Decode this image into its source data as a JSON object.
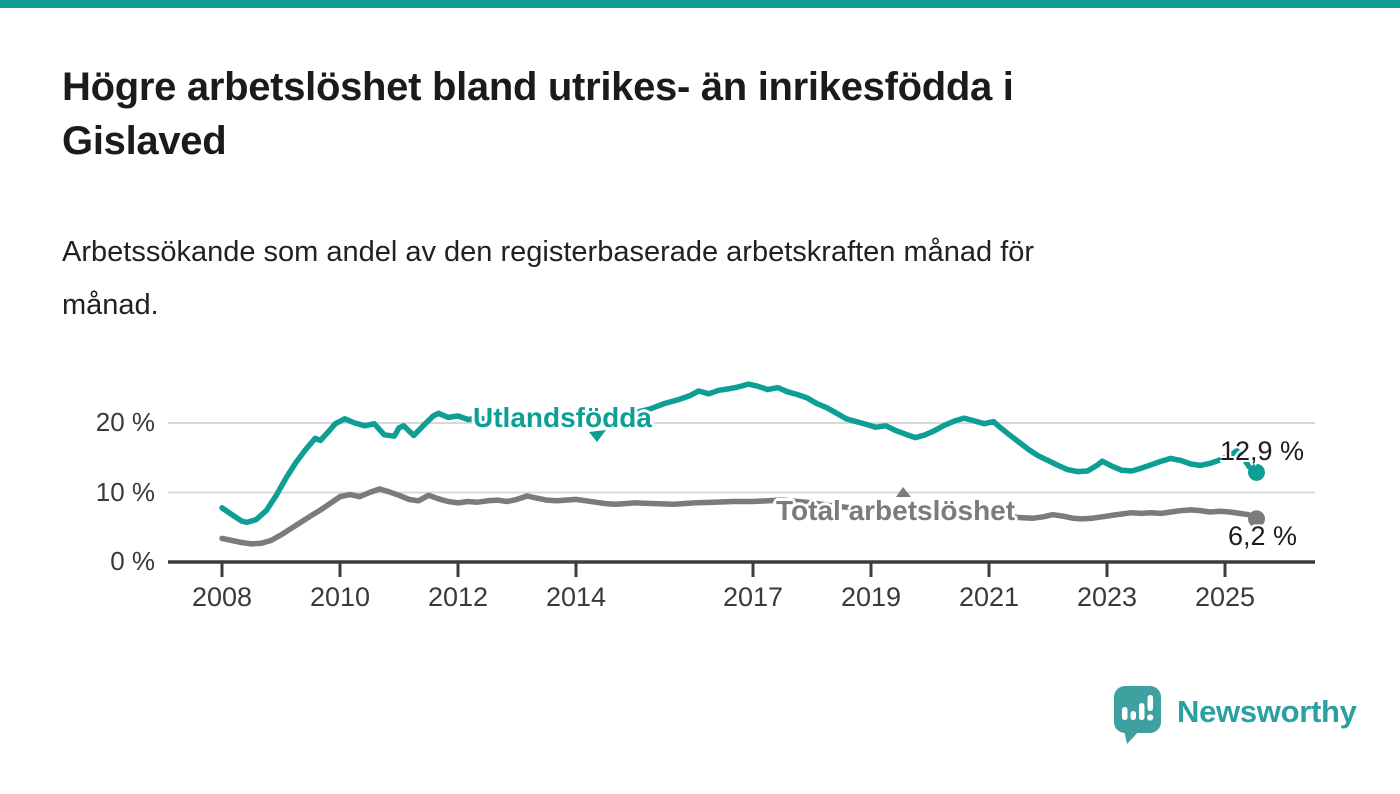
{
  "page": {
    "title_lines": [
      "Högre arbetslöshet bland utrikes- än inrikesfödda i",
      "Gislaved"
    ],
    "subtitle_lines": [
      "Arbetssökande som andel av den registerbaserade arbetskraften månad för",
      "månad."
    ]
  },
  "branding": {
    "logo_text": "Newsworthy",
    "icon": "speech-bubble-bar-chart-icon",
    "icon_color": "#3fa0a0",
    "text_color": "#2ba0a2"
  },
  "colors": {
    "accent_bar": "#0d9e94",
    "grid": "#d8d8d8",
    "axis": "#3d3d3d",
    "axis_text": "#3a3a3a",
    "value_label_text": "#1d1d1d"
  },
  "chart_data": {
    "type": "line",
    "x_unit": "decimal_year",
    "xlim": [
      2007.1,
      2026.4
    ],
    "ylim": [
      0,
      29
    ],
    "grid": true,
    "legend_position": "inline-labels",
    "y_ticks": [
      {
        "value": 0,
        "label": "0 %"
      },
      {
        "value": 10,
        "label": "10 %"
      },
      {
        "value": 20,
        "label": "20 %"
      }
    ],
    "x_ticks": [
      {
        "value": 2008,
        "label": "2008"
      },
      {
        "value": 2010,
        "label": "2010"
      },
      {
        "value": 2012,
        "label": "2012"
      },
      {
        "value": 2014,
        "label": "2014"
      },
      {
        "value": 2017,
        "label": "2017"
      },
      {
        "value": 2019,
        "label": "2019"
      },
      {
        "value": 2021,
        "label": "2021"
      },
      {
        "value": 2023,
        "label": "2023"
      },
      {
        "value": 2025,
        "label": "2025"
      }
    ],
    "series": [
      {
        "name": "Utlandsfödda",
        "color": "#0d9e94",
        "end_label": "12,9 %",
        "end_value": 12.9,
        "points": [
          [
            2008.0,
            7.8
          ],
          [
            2008.17,
            6.8
          ],
          [
            2008.33,
            5.9
          ],
          [
            2008.42,
            5.7
          ],
          [
            2008.58,
            6.1
          ],
          [
            2008.75,
            7.4
          ],
          [
            2008.92,
            9.6
          ],
          [
            2009.08,
            12.0
          ],
          [
            2009.25,
            14.3
          ],
          [
            2009.42,
            16.2
          ],
          [
            2009.58,
            17.8
          ],
          [
            2009.67,
            17.5
          ],
          [
            2009.83,
            19.0
          ],
          [
            2009.92,
            19.9
          ],
          [
            2010.08,
            20.6
          ],
          [
            2010.25,
            20.0
          ],
          [
            2010.42,
            19.6
          ],
          [
            2010.58,
            19.9
          ],
          [
            2010.75,
            18.3
          ],
          [
            2010.92,
            18.1
          ],
          [
            2011.0,
            19.3
          ],
          [
            2011.08,
            19.6
          ],
          [
            2011.25,
            18.2
          ],
          [
            2011.42,
            19.7
          ],
          [
            2011.58,
            21.0
          ],
          [
            2011.67,
            21.4
          ],
          [
            2011.83,
            20.8
          ],
          [
            2012.0,
            21.0
          ],
          [
            2012.17,
            20.5
          ],
          [
            2012.33,
            20.7
          ],
          [
            2012.5,
            20.5
          ],
          [
            2012.67,
            20.7
          ],
          [
            2012.83,
            20.4
          ],
          [
            2013.0,
            20.5
          ],
          [
            2013.25,
            20.8
          ],
          [
            2013.5,
            20.5
          ],
          [
            2013.75,
            20.7
          ],
          [
            2014.0,
            20.6
          ],
          [
            2014.25,
            21.0
          ],
          [
            2014.5,
            20.8
          ],
          [
            2014.75,
            21.2
          ],
          [
            2015.0,
            21.5
          ],
          [
            2015.25,
            22.0
          ],
          [
            2015.5,
            22.8
          ],
          [
            2015.75,
            23.4
          ],
          [
            2015.92,
            23.9
          ],
          [
            2016.08,
            24.6
          ],
          [
            2016.25,
            24.2
          ],
          [
            2016.42,
            24.7
          ],
          [
            2016.58,
            24.9
          ],
          [
            2016.75,
            25.2
          ],
          [
            2016.92,
            25.6
          ],
          [
            2017.08,
            25.3
          ],
          [
            2017.25,
            24.8
          ],
          [
            2017.42,
            25.1
          ],
          [
            2017.58,
            24.5
          ],
          [
            2017.75,
            24.1
          ],
          [
            2017.92,
            23.6
          ],
          [
            2018.08,
            22.8
          ],
          [
            2018.25,
            22.2
          ],
          [
            2018.42,
            21.4
          ],
          [
            2018.58,
            20.6
          ],
          [
            2018.75,
            20.2
          ],
          [
            2018.92,
            19.8
          ],
          [
            2019.08,
            19.4
          ],
          [
            2019.25,
            19.6
          ],
          [
            2019.42,
            18.9
          ],
          [
            2019.58,
            18.4
          ],
          [
            2019.75,
            17.9
          ],
          [
            2019.92,
            18.3
          ],
          [
            2020.08,
            18.9
          ],
          [
            2020.25,
            19.7
          ],
          [
            2020.42,
            20.3
          ],
          [
            2020.58,
            20.7
          ],
          [
            2020.75,
            20.3
          ],
          [
            2020.92,
            19.9
          ],
          [
            2021.08,
            20.2
          ],
          [
            2021.17,
            19.5
          ],
          [
            2021.33,
            18.4
          ],
          [
            2021.5,
            17.3
          ],
          [
            2021.67,
            16.2
          ],
          [
            2021.83,
            15.3
          ],
          [
            2022.0,
            14.6
          ],
          [
            2022.17,
            13.9
          ],
          [
            2022.33,
            13.3
          ],
          [
            2022.5,
            13.0
          ],
          [
            2022.67,
            13.1
          ],
          [
            2022.83,
            13.9
          ],
          [
            2022.92,
            14.5
          ],
          [
            2023.08,
            13.8
          ],
          [
            2023.25,
            13.2
          ],
          [
            2023.42,
            13.1
          ],
          [
            2023.58,
            13.5
          ],
          [
            2023.75,
            14.0
          ],
          [
            2023.92,
            14.5
          ],
          [
            2024.08,
            14.9
          ],
          [
            2024.25,
            14.6
          ],
          [
            2024.42,
            14.1
          ],
          [
            2024.58,
            13.9
          ],
          [
            2024.75,
            14.2
          ],
          [
            2024.92,
            14.7
          ],
          [
            2025.08,
            15.3
          ],
          [
            2025.2,
            16.0
          ],
          [
            2025.3,
            15.2
          ],
          [
            2025.4,
            13.8
          ],
          [
            2025.5,
            12.9
          ]
        ]
      },
      {
        "name": "Total arbetslöshet",
        "color": "#7b7b7b",
        "end_label": "6,2 %",
        "end_value": 6.2,
        "points": [
          [
            2008.0,
            3.4
          ],
          [
            2008.17,
            3.1
          ],
          [
            2008.33,
            2.8
          ],
          [
            2008.5,
            2.6
          ],
          [
            2008.67,
            2.7
          ],
          [
            2008.83,
            3.1
          ],
          [
            2009.0,
            3.9
          ],
          [
            2009.17,
            4.8
          ],
          [
            2009.33,
            5.7
          ],
          [
            2009.5,
            6.6
          ],
          [
            2009.67,
            7.5
          ],
          [
            2009.83,
            8.4
          ],
          [
            2010.0,
            9.4
          ],
          [
            2010.17,
            9.7
          ],
          [
            2010.33,
            9.4
          ],
          [
            2010.5,
            10.0
          ],
          [
            2010.67,
            10.5
          ],
          [
            2010.83,
            10.1
          ],
          [
            2011.0,
            9.6
          ],
          [
            2011.17,
            9.0
          ],
          [
            2011.33,
            8.8
          ],
          [
            2011.5,
            9.6
          ],
          [
            2011.67,
            9.1
          ],
          [
            2011.83,
            8.7
          ],
          [
            2012.0,
            8.5
          ],
          [
            2012.17,
            8.7
          ],
          [
            2012.33,
            8.6
          ],
          [
            2012.5,
            8.8
          ],
          [
            2012.67,
            8.9
          ],
          [
            2012.83,
            8.7
          ],
          [
            2013.0,
            9.0
          ],
          [
            2013.17,
            9.5
          ],
          [
            2013.33,
            9.2
          ],
          [
            2013.5,
            8.9
          ],
          [
            2013.67,
            8.8
          ],
          [
            2013.83,
            8.9
          ],
          [
            2014.0,
            9.0
          ],
          [
            2014.17,
            8.8
          ],
          [
            2014.33,
            8.6
          ],
          [
            2014.5,
            8.4
          ],
          [
            2014.67,
            8.3
          ],
          [
            2014.83,
            8.4
          ],
          [
            2015.0,
            8.5
          ],
          [
            2015.33,
            8.4
          ],
          [
            2015.67,
            8.3
          ],
          [
            2016.0,
            8.5
          ],
          [
            2016.33,
            8.6
          ],
          [
            2016.67,
            8.7
          ],
          [
            2017.0,
            8.7
          ],
          [
            2017.25,
            8.8
          ],
          [
            2017.5,
            8.9
          ],
          [
            2017.75,
            8.7
          ],
          [
            2018.0,
            8.5
          ],
          [
            2018.33,
            8.1
          ],
          [
            2018.67,
            7.8
          ],
          [
            2019.0,
            7.6
          ],
          [
            2019.33,
            7.4
          ],
          [
            2019.67,
            7.2
          ],
          [
            2020.0,
            7.4
          ],
          [
            2020.33,
            7.6
          ],
          [
            2020.67,
            7.5
          ],
          [
            2021.0,
            7.1
          ],
          [
            2021.25,
            6.7
          ],
          [
            2021.5,
            6.4
          ],
          [
            2021.75,
            6.3
          ],
          [
            2021.92,
            6.5
          ],
          [
            2022.08,
            6.8
          ],
          [
            2022.25,
            6.6
          ],
          [
            2022.42,
            6.3
          ],
          [
            2022.58,
            6.2
          ],
          [
            2022.75,
            6.3
          ],
          [
            2022.92,
            6.5
          ],
          [
            2023.08,
            6.7
          ],
          [
            2023.25,
            6.9
          ],
          [
            2023.42,
            7.1
          ],
          [
            2023.58,
            7.0
          ],
          [
            2023.75,
            7.1
          ],
          [
            2023.92,
            7.0
          ],
          [
            2024.08,
            7.2
          ],
          [
            2024.25,
            7.4
          ],
          [
            2024.42,
            7.5
          ],
          [
            2024.58,
            7.4
          ],
          [
            2024.75,
            7.2
          ],
          [
            2024.92,
            7.3
          ],
          [
            2025.08,
            7.2
          ],
          [
            2025.25,
            7.0
          ],
          [
            2025.4,
            6.8
          ],
          [
            2025.5,
            6.2
          ]
        ]
      }
    ]
  }
}
